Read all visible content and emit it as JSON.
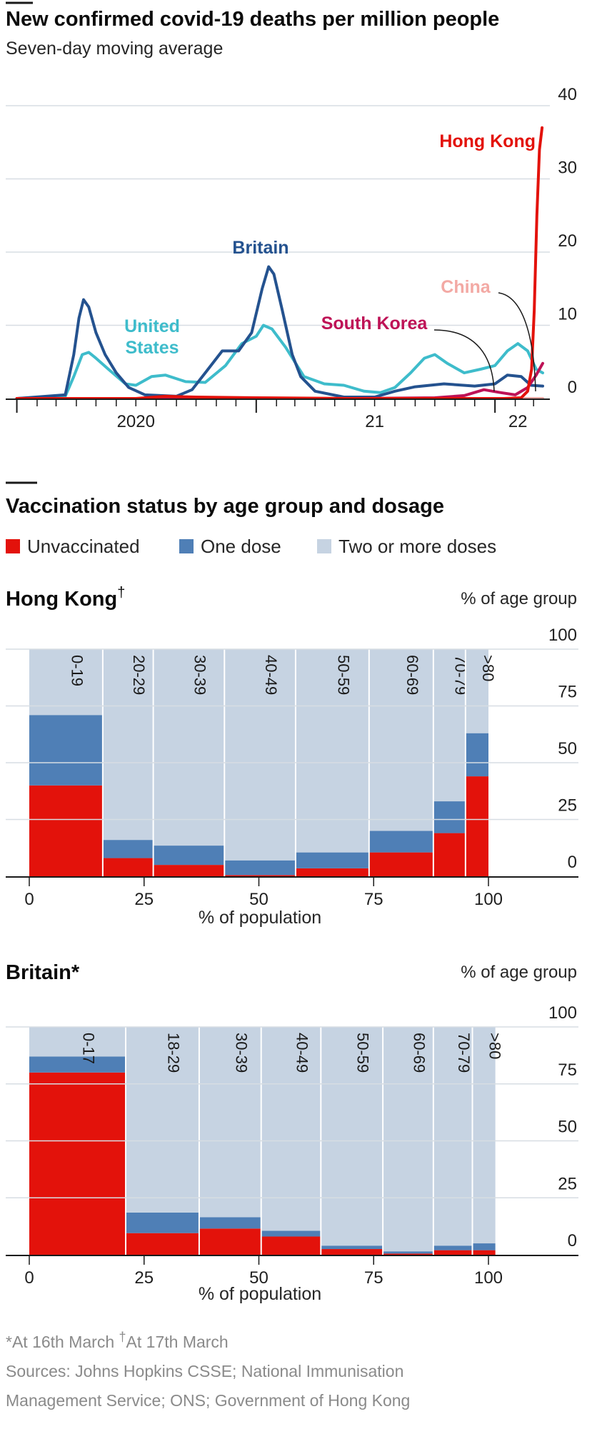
{
  "colors": {
    "hong_kong": "#e3120b",
    "britain": "#24528f",
    "united_states": "#3ebccb",
    "south_korea": "#be1256",
    "china": "#f3a9a4",
    "unvaccinated": "#e3120b",
    "one_dose": "#4f7fb6",
    "two_doses": "#c6d3e2",
    "grid": "#d7dde3",
    "axis": "#1a1a1a"
  },
  "chart_data": [
    {
      "type": "line",
      "title": "New confirmed covid-19 deaths per million people",
      "subtitle": "Seven-day moving average",
      "x_ticks": [
        "2020",
        "21",
        "22"
      ],
      "ylim": [
        0,
        40
      ],
      "y_ticks": [
        "0",
        "10",
        "20",
        "30",
        "40"
      ],
      "grid": true,
      "series": [
        {
          "name": "Hong Kong",
          "label_lines": [
            "Hong Kong"
          ],
          "color_key": "hong_kong",
          "points": [
            [
              "2020-01-01",
              0
            ],
            [
              "2020-04-01",
              0
            ],
            [
              "2020-07-01",
              0
            ],
            [
              "2020-08-15",
              0.3
            ],
            [
              "2020-10-01",
              0.2
            ],
            [
              "2021-01-01",
              0.1
            ],
            [
              "2021-06-01",
              0
            ],
            [
              "2021-12-01",
              0
            ],
            [
              "2022-01-15",
              0
            ],
            [
              "2022-02-10",
              0.1
            ],
            [
              "2022-02-20",
              1
            ],
            [
              "2022-02-26",
              4
            ],
            [
              "2022-03-02",
              12
            ],
            [
              "2022-03-06",
              25
            ],
            [
              "2022-03-10",
              34
            ],
            [
              "2022-03-14",
              37
            ]
          ]
        },
        {
          "name": "Britain",
          "label_lines": [
            "Britain"
          ],
          "color_key": "britain",
          "points": [
            [
              "2020-01-01",
              0
            ],
            [
              "2020-03-15",
              0.5
            ],
            [
              "2020-03-28",
              6
            ],
            [
              "2020-04-05",
              11
            ],
            [
              "2020-04-12",
              13.5
            ],
            [
              "2020-04-20",
              12.5
            ],
            [
              "2020-05-01",
              9
            ],
            [
              "2020-05-15",
              6
            ],
            [
              "2020-06-01",
              3.5
            ],
            [
              "2020-06-20",
              1.5
            ],
            [
              "2020-07-15",
              0.5
            ],
            [
              "2020-09-01",
              0.3
            ],
            [
              "2020-09-25",
              1.2
            ],
            [
              "2020-10-15",
              3.5
            ],
            [
              "2020-11-10",
              6.5
            ],
            [
              "2020-12-05",
              6.5
            ],
            [
              "2020-12-25",
              9
            ],
            [
              "2021-01-10",
              15
            ],
            [
              "2021-01-20",
              18
            ],
            [
              "2021-01-28",
              17
            ],
            [
              "2021-02-10",
              12
            ],
            [
              "2021-02-25",
              6
            ],
            [
              "2021-03-10",
              3
            ],
            [
              "2021-04-01",
              1
            ],
            [
              "2021-05-15",
              0.2
            ],
            [
              "2021-07-01",
              0.2
            ],
            [
              "2021-08-01",
              1
            ],
            [
              "2021-09-01",
              1.6
            ],
            [
              "2021-10-15",
              2
            ],
            [
              "2021-12-01",
              1.7
            ],
            [
              "2022-01-01",
              2
            ],
            [
              "2022-01-20",
              3.2
            ],
            [
              "2022-02-10",
              3
            ],
            [
              "2022-02-25",
              1.8
            ],
            [
              "2022-03-15",
              1.7
            ]
          ]
        },
        {
          "name": "United States",
          "label_lines": [
            "United",
            "States"
          ],
          "color_key": "united_states",
          "points": [
            [
              "2020-01-01",
              0
            ],
            [
              "2020-03-15",
              0.3
            ],
            [
              "2020-03-28",
              3
            ],
            [
              "2020-04-10",
              6
            ],
            [
              "2020-04-20",
              6.3
            ],
            [
              "2020-05-01",
              5.5
            ],
            [
              "2020-05-20",
              4
            ],
            [
              "2020-06-15",
              2
            ],
            [
              "2020-07-01",
              1.8
            ],
            [
              "2020-07-25",
              3
            ],
            [
              "2020-08-15",
              3.2
            ],
            [
              "2020-09-15",
              2.3
            ],
            [
              "2020-10-15",
              2.2
            ],
            [
              "2020-11-15",
              4.5
            ],
            [
              "2020-12-10",
              7.5
            ],
            [
              "2021-01-01",
              8.5
            ],
            [
              "2021-01-12",
              10
            ],
            [
              "2021-01-25",
              9.5
            ],
            [
              "2021-02-15",
              7
            ],
            [
              "2021-03-15",
              3
            ],
            [
              "2021-04-15",
              2
            ],
            [
              "2021-05-15",
              1.8
            ],
            [
              "2021-06-15",
              1
            ],
            [
              "2021-07-10",
              0.8
            ],
            [
              "2021-08-01",
              1.5
            ],
            [
              "2021-08-25",
              3.5
            ],
            [
              "2021-09-15",
              5.5
            ],
            [
              "2021-10-01",
              6
            ],
            [
              "2021-10-20",
              4.8
            ],
            [
              "2021-11-15",
              3.5
            ],
            [
              "2021-12-10",
              4
            ],
            [
              "2022-01-01",
              4.5
            ],
            [
              "2022-01-20",
              6.5
            ],
            [
              "2022-02-05",
              7.5
            ],
            [
              "2022-02-20",
              6.5
            ],
            [
              "2022-03-05",
              4
            ],
            [
              "2022-03-15",
              3.5
            ]
          ]
        },
        {
          "name": "South Korea",
          "label_lines": [
            "South Korea"
          ],
          "color_key": "south_korea",
          "points": [
            [
              "2020-01-01",
              0
            ],
            [
              "2021-06-01",
              0
            ],
            [
              "2021-10-01",
              0.1
            ],
            [
              "2021-11-15",
              0.4
            ],
            [
              "2021-12-15",
              1.2
            ],
            [
              "2022-01-10",
              0.8
            ],
            [
              "2022-02-01",
              0.5
            ],
            [
              "2022-02-20",
              1.5
            ],
            [
              "2022-03-05",
              3.2
            ],
            [
              "2022-03-15",
              4.8
            ]
          ]
        },
        {
          "name": "China",
          "label_lines": [
            "China"
          ],
          "color_key": "china",
          "points": [
            [
              "2020-01-01",
              0
            ],
            [
              "2022-03-15",
              0
            ]
          ]
        }
      ]
    },
    {
      "type": "bar",
      "title": "Hong Kong",
      "title_mark": "†",
      "unit_label": "% of age group",
      "xlabel": "% of population",
      "xlim": [
        0,
        100
      ],
      "ylim": [
        0,
        100
      ],
      "x_ticks": [
        "0",
        "25",
        "50",
        "75",
        "100"
      ],
      "y_ticks": [
        "0",
        "25",
        "50",
        "75",
        "100"
      ],
      "categories": [
        "0-19",
        "20-29",
        "30-39",
        "40-49",
        "50-59",
        "60-69",
        "70-79",
        ">80"
      ],
      "population_share": [
        16,
        11,
        15.5,
        15.5,
        16,
        14,
        7,
        5
      ],
      "series": [
        {
          "name": "Unvaccinated",
          "color_key": "unvaccinated",
          "values": [
            40,
            8,
            5,
            0.5,
            3.5,
            10.5,
            19,
            44
          ]
        },
        {
          "name": "One dose",
          "color_key": "one_dose",
          "values": [
            31,
            8,
            8.5,
            6.5,
            7,
            9.5,
            14,
            19
          ]
        },
        {
          "name": "Two or more doses",
          "color_key": "two_doses",
          "values": [
            29,
            84,
            86.5,
            93,
            89.5,
            80,
            67,
            37
          ]
        }
      ]
    },
    {
      "type": "bar",
      "title": "Britain",
      "title_mark": "*",
      "unit_label": "% of age group",
      "xlabel": "% of population",
      "xlim": [
        0,
        100
      ],
      "ylim": [
        0,
        100
      ],
      "x_ticks": [
        "0",
        "25",
        "50",
        "75",
        "100"
      ],
      "y_ticks": [
        "0",
        "25",
        "50",
        "75",
        "100"
      ],
      "categories": [
        "0-17",
        "18-29",
        "30-39",
        "40-49",
        "50-59",
        "60-69",
        "70-79",
        ">80"
      ],
      "population_share": [
        21,
        16,
        13.5,
        13,
        13.5,
        11,
        8.5,
        5
      ],
      "series": [
        {
          "name": "Unvaccinated",
          "color_key": "unvaccinated",
          "values": [
            80,
            9.5,
            11.5,
            8,
            2.5,
            0.5,
            2,
            2
          ]
        },
        {
          "name": "One dose",
          "color_key": "one_dose",
          "values": [
            7,
            9,
            5,
            2.5,
            1.5,
            1,
            2,
            3
          ]
        },
        {
          "name": "Two or more doses",
          "color_key": "two_doses",
          "values": [
            13,
            81.5,
            83.5,
            89.5,
            96,
            98.5,
            96,
            95
          ]
        }
      ]
    }
  ],
  "vaccination_section": {
    "title": "Vaccination status by age group and dosage",
    "legend": [
      "Unvaccinated",
      "One dose",
      "Two or more doses"
    ]
  },
  "footnotes": {
    "line1a": "*At 16th March ",
    "mark": "†",
    "line1b": "At 17th March",
    "line2": "Sources: Johns Hopkins CSSE; National Immunisation",
    "line3": "Management Service; ONS; Government of Hong Kong"
  }
}
